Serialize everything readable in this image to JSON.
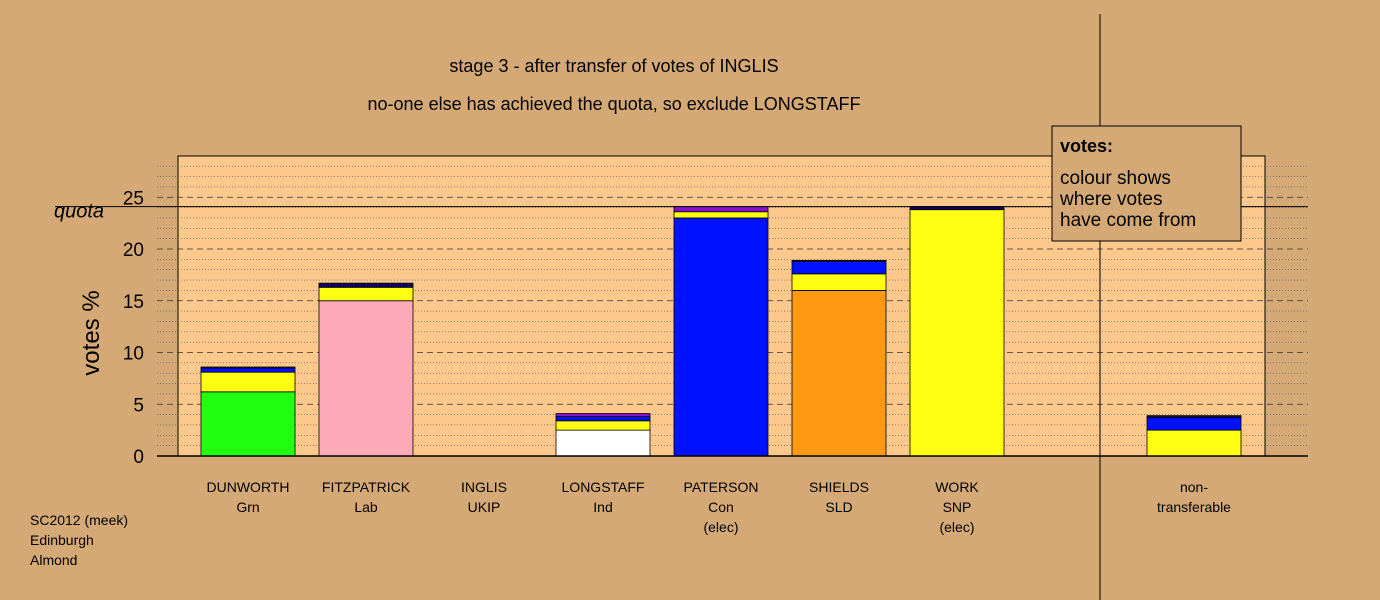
{
  "chart_data": {
    "type": "bar",
    "title": "stage 3 - after transfer of votes of INGLIS",
    "subtitle": "no-one else has achieved the quota, so exclude LONGSTAFF",
    "ylabel": "votes %",
    "ylim": [
      0,
      29
    ],
    "yticks": [
      0,
      5,
      10,
      15,
      20,
      25
    ],
    "quota": 24.1,
    "quota_label": "quota",
    "grid": true,
    "legend": {
      "title": "votes:",
      "lines": [
        "colour shows",
        "where votes",
        "have come from"
      ],
      "placement": "top-right"
    },
    "colors": {
      "background": "#d4a976",
      "plot_area": "#fcc88c",
      "green": "#22ff11",
      "pink": "#ffaabb",
      "white": "#ffffff",
      "yellow": "#ffff11",
      "blue": "#0011ff",
      "orange": "#ff9911",
      "navy": "#110066",
      "purple": "#8811cc"
    },
    "categories": [
      {
        "name": "DUNWORTH",
        "party": "Grn",
        "note": "",
        "segments": [
          {
            "value": 6.2,
            "color": "#22ff11"
          },
          {
            "value": 1.9,
            "color": "#ffff11"
          },
          {
            "value": 0.4,
            "color": "#0011ff"
          },
          {
            "value": 0.1,
            "color": "#110066"
          }
        ]
      },
      {
        "name": "FITZPATRICK",
        "party": "Lab",
        "note": "",
        "segments": [
          {
            "value": 15.0,
            "color": "#ffaabb"
          },
          {
            "value": 1.3,
            "color": "#ffff11"
          },
          {
            "value": 0.4,
            "color": "#110066"
          }
        ]
      },
      {
        "name": "INGLIS",
        "party": "UKIP",
        "note": "",
        "segments": []
      },
      {
        "name": "LONGSTAFF",
        "party": "Ind",
        "note": "",
        "segments": [
          {
            "value": 2.5,
            "color": "#ffffff"
          },
          {
            "value": 0.9,
            "color": "#ffff11"
          },
          {
            "value": 0.4,
            "color": "#0011ff"
          },
          {
            "value": 0.3,
            "color": "#8811cc"
          }
        ]
      },
      {
        "name": "PATERSON",
        "party": "Con",
        "note": "(elec)",
        "segments": [
          {
            "value": 23.0,
            "color": "#0011ff"
          },
          {
            "value": 0.6,
            "color": "#ffff11"
          },
          {
            "value": 0.5,
            "color": "#8811cc"
          }
        ]
      },
      {
        "name": "SHIELDS",
        "party": "SLD",
        "note": "",
        "segments": [
          {
            "value": 16.0,
            "color": "#ff9911"
          },
          {
            "value": 1.6,
            "color": "#ffff11"
          },
          {
            "value": 1.2,
            "color": "#0011ff"
          },
          {
            "value": 0.1,
            "color": "#110066"
          }
        ]
      },
      {
        "name": "WORK",
        "party": "SNP",
        "note": "(elec)",
        "segments": [
          {
            "value": 23.8,
            "color": "#ffff11"
          },
          {
            "value": 0.3,
            "color": "#110066"
          }
        ]
      },
      {
        "name": "non-",
        "party": "transferable",
        "note": "",
        "segments": [
          {
            "value": 2.5,
            "color": "#ffff11"
          },
          {
            "value": 1.2,
            "color": "#0011ff"
          },
          {
            "value": 0.2,
            "color": "#110066"
          }
        ]
      }
    ]
  },
  "footnote": {
    "line1": "SC2012 (meek)",
    "line2": "Edinburgh",
    "line3": "Almond"
  }
}
